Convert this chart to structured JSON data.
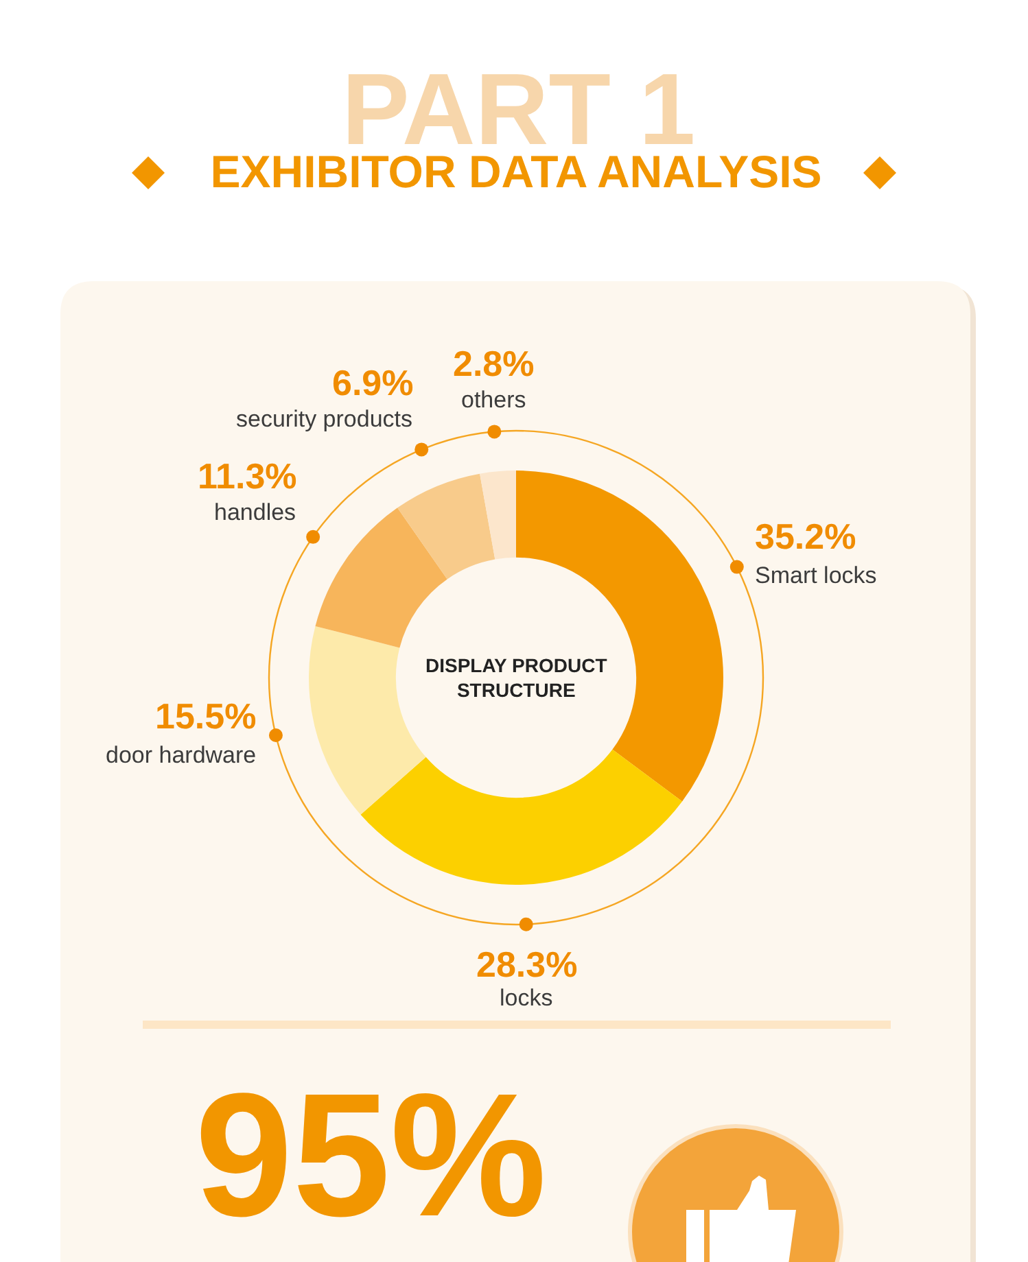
{
  "chart_data": {
    "type": "donut",
    "title": "EXHIBITOR DATA ANALYSIS",
    "categories": [
      "Smart locks",
      "locks",
      "door hardware",
      "handles",
      "security products",
      "others"
    ],
    "values": [
      35.2,
      28.3,
      15.5,
      11.3,
      6.9,
      2.8
    ],
    "colors": [
      "#f39800",
      "#fcd000",
      "#fdeaaa",
      "#f7b55b",
      "#f8cb8b",
      "#fce6cc"
    ],
    "value_labels": [
      "35.2%",
      "28.3%",
      "15.5%",
      "11.3%",
      "6.9%",
      "2.8%"
    ],
    "annotations": [
      "PART 1",
      "DISPLAY PRODUCT STRUCTURE",
      "95%"
    ]
  }
}
